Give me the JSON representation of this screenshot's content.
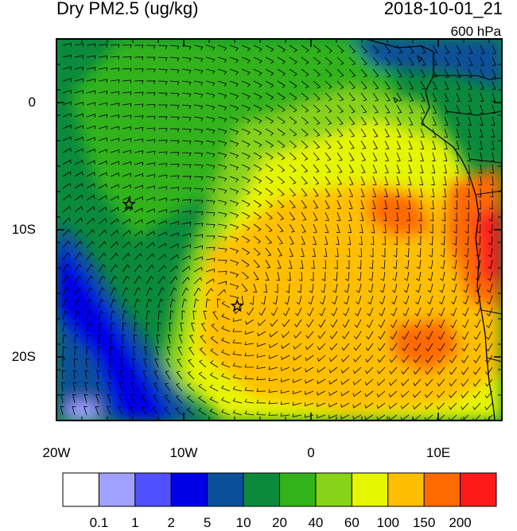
{
  "title": "Dry PM2.5 (ug/kg)",
  "datetime": "2018-10-01_21",
  "level": "600 hPa",
  "lat_ticks": [
    {
      "value": 0,
      "label": "0"
    },
    {
      "value": -10,
      "label": "10S"
    },
    {
      "value": -20,
      "label": "20S"
    }
  ],
  "lon_ticks": [
    {
      "value": -20,
      "label": "20W"
    },
    {
      "value": -10,
      "label": "10W"
    },
    {
      "value": 0,
      "label": "0"
    },
    {
      "value": 10,
      "label": "10E"
    }
  ],
  "extent": {
    "lon_min": -20,
    "lon_max": 15,
    "lat_min": -25,
    "lat_max": 5
  },
  "stars": [
    {
      "lon": -14.3,
      "lat": -8.0
    },
    {
      "lon": -5.8,
      "lat": -16.0
    }
  ],
  "colorbar": {
    "colors": [
      "#ffffff",
      "#a0a0ff",
      "#5050ff",
      "#0000e6",
      "#0a4f9a",
      "#0b8a3c",
      "#33b31a",
      "#88d21a",
      "#e6f500",
      "#ffbf00",
      "#ff6a00",
      "#ff1a1a"
    ],
    "labels": [
      "0.1",
      "1",
      "2",
      "5",
      "10",
      "20",
      "40",
      "60",
      "100",
      "150",
      "200"
    ]
  }
}
